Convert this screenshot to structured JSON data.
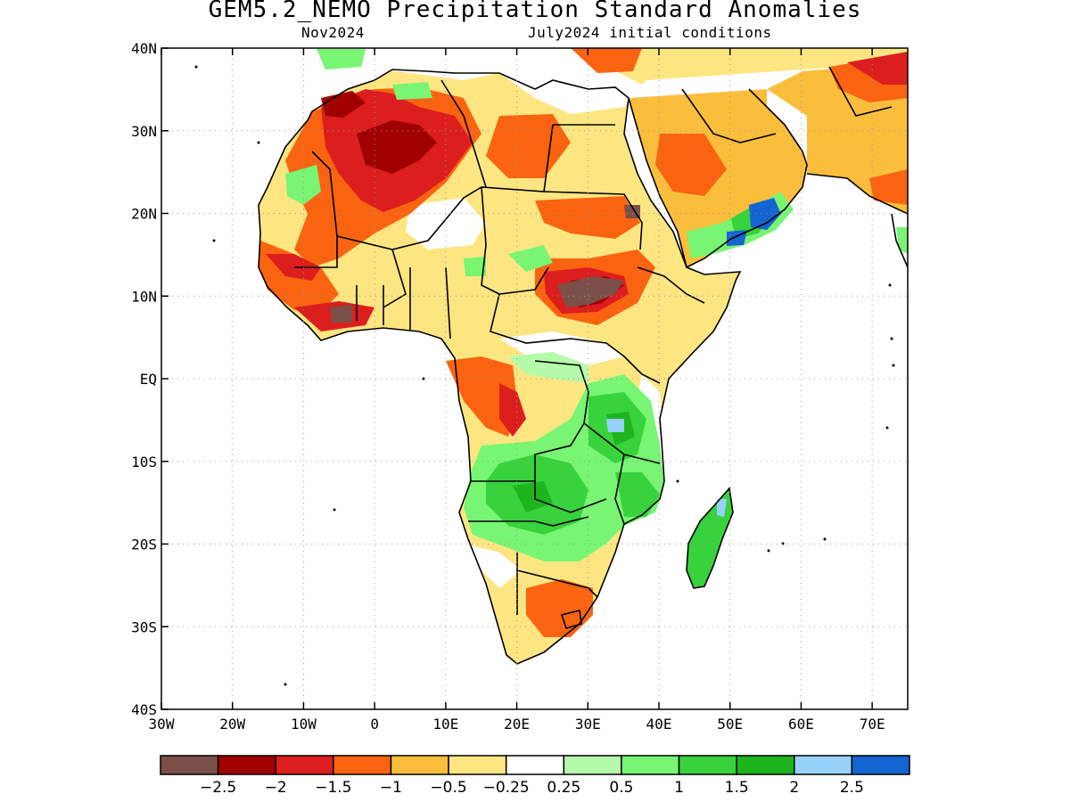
{
  "title": "GEM5.2_NEMO Precipitation Standard Anomalies",
  "subtitle_left": "Nov2024",
  "subtitle_right": "July2024 initial conditions",
  "map": {
    "lon_range": [
      -30,
      75
    ],
    "lat_range": [
      -40,
      40
    ],
    "lat_ticks": [
      {
        "value": 40,
        "label": "40N"
      },
      {
        "value": 30,
        "label": "30N"
      },
      {
        "value": 20,
        "label": "20N"
      },
      {
        "value": 10,
        "label": "10N"
      },
      {
        "value": 0,
        "label": "EQ"
      },
      {
        "value": -10,
        "label": "10S"
      },
      {
        "value": -20,
        "label": "20S"
      },
      {
        "value": -30,
        "label": "30S"
      },
      {
        "value": -40,
        "label": "40S"
      }
    ],
    "lon_ticks": [
      {
        "value": -30,
        "label": "30W"
      },
      {
        "value": -20,
        "label": "20W"
      },
      {
        "value": -10,
        "label": "10W"
      },
      {
        "value": 0,
        "label": "0"
      },
      {
        "value": 10,
        "label": "10E"
      },
      {
        "value": 20,
        "label": "20E"
      },
      {
        "value": 30,
        "label": "30E"
      },
      {
        "value": 40,
        "label": "40E"
      },
      {
        "value": 50,
        "label": "50E"
      },
      {
        "value": 60,
        "label": "60E"
      },
      {
        "value": 70,
        "label": "70E"
      }
    ],
    "grid": true
  },
  "colorbar": {
    "colors": [
      "#7a5048",
      "#a00000",
      "#dc1e1e",
      "#fa6410",
      "#fabe3c",
      "#fde682",
      "#ffffff",
      "#b4faaa",
      "#78f573",
      "#37d23c",
      "#1eb41e",
      "#96d2fa",
      "#1464d2"
    ],
    "labels": [
      "−2.5",
      "−2",
      "−1.5",
      "−1",
      "−0.5",
      "−0.25",
      "0.25",
      "0.5",
      "1",
      "1.5",
      "2",
      "2.5"
    ]
  }
}
